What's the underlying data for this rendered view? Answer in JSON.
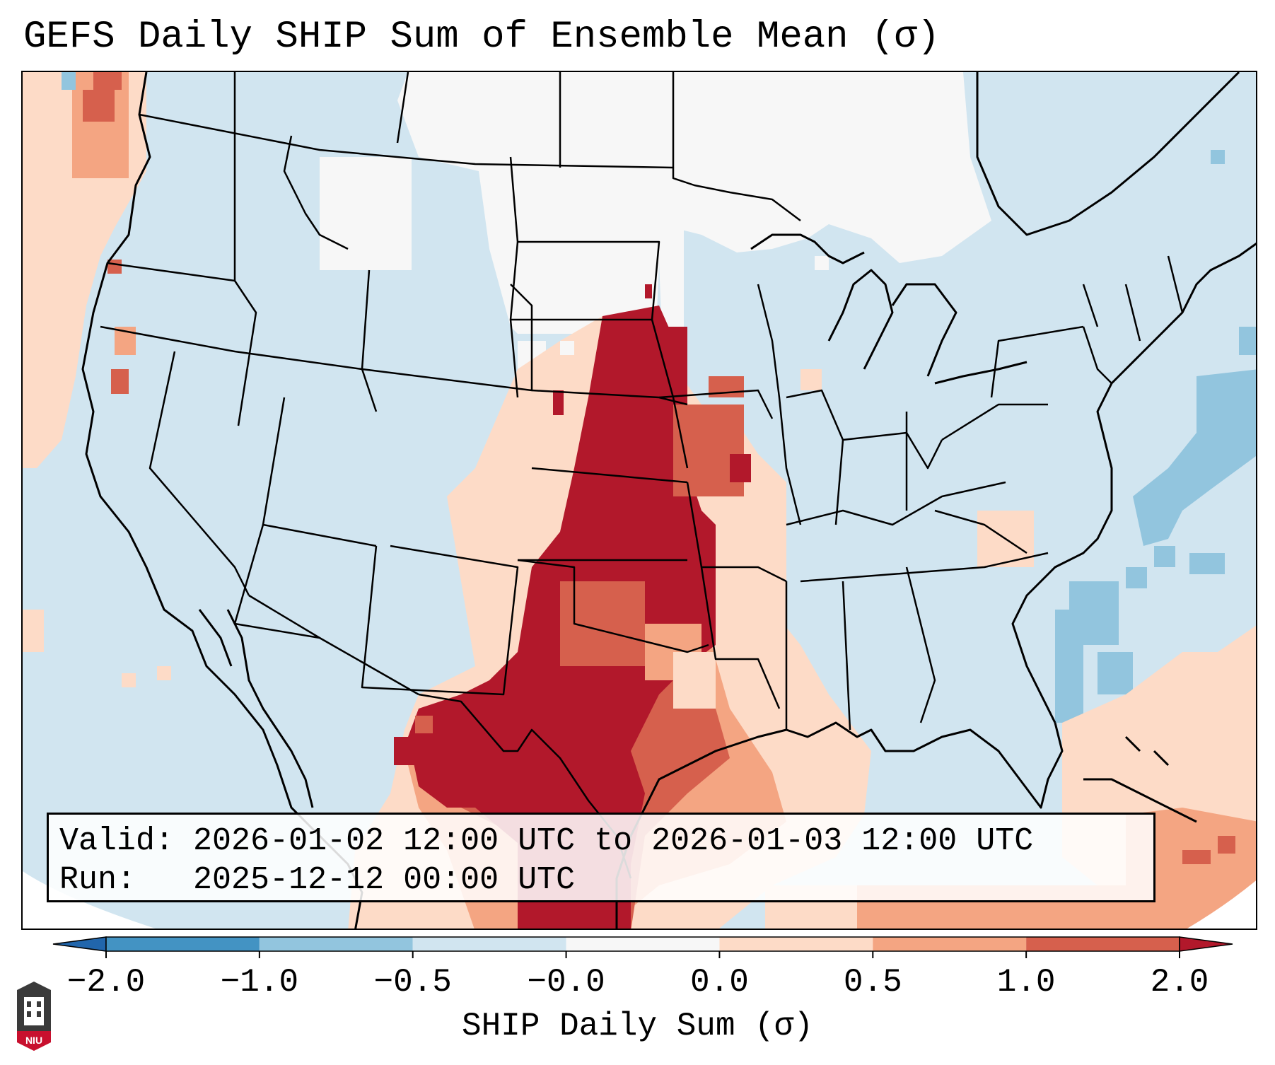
{
  "title": "GEFS Daily SHIP Sum of Ensemble Mean (σ)",
  "info": {
    "valid_label": "Valid:",
    "valid_value": "2026-01-02 12:00 UTC to 2026-01-03 12:00 UTC",
    "run_label": "Run:",
    "run_value": "2025-12-12 00:00 UTC"
  },
  "colorbar": {
    "label": "SHIP Daily Sum (σ)",
    "ticks": [
      "−2.0",
      "−1.0",
      "−0.5",
      "−0.0",
      "0.0",
      "0.5",
      "1.0",
      "2.0"
    ],
    "colors": [
      "#4393c3",
      "#92c5de",
      "#d1e5f0",
      "#f7f7f7",
      "#fddbc7",
      "#f4a582",
      "#d6604d",
      "#b2182b"
    ]
  },
  "map": {
    "background_color": "#d1e5f0",
    "region": "Contiguous United States"
  },
  "logo": {
    "text": "NIU"
  }
}
